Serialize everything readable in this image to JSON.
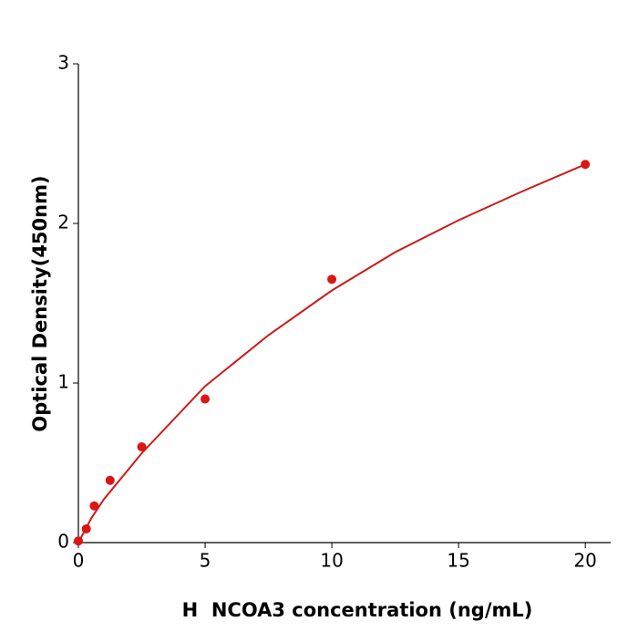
{
  "chart_data": {
    "type": "scatter",
    "x_label": "H  NCOA3 concentration (ng/mL)",
    "y_label": "Optical Density(450nm)",
    "xlim": [
      0,
      21
    ],
    "ylim": [
      0,
      3
    ],
    "xticks": [
      0,
      5,
      10,
      15,
      20
    ],
    "yticks": [
      0,
      1,
      2,
      3
    ],
    "series": [
      {
        "type": "scatter",
        "color": "#dc1414",
        "x": [
          0,
          0.3125,
          0.625,
          1.25,
          2.5,
          5,
          10,
          20
        ],
        "values": [
          0.01,
          0.086,
          0.23,
          0.39,
          0.6,
          0.9,
          1.65,
          2.37
        ]
      },
      {
        "type": "line",
        "color": "#cc1a1a",
        "x": [
          0,
          0.5,
          1,
          2.5,
          5,
          7.5,
          10,
          12.5,
          15,
          17.5,
          20
        ],
        "values": [
          0,
          0.15,
          0.27,
          0.56,
          0.98,
          1.3,
          1.58,
          1.82,
          2.02,
          2.2,
          2.37
        ]
      }
    ]
  }
}
